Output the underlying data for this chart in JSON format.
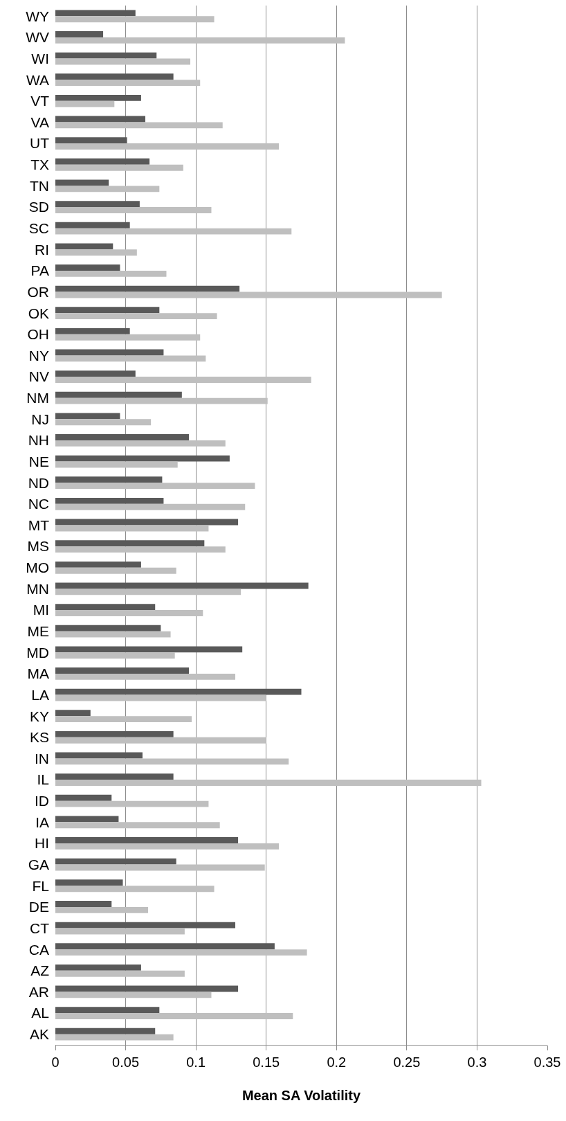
{
  "chart_data": {
    "type": "bar",
    "orientation": "horizontal",
    "xlabel": "Mean SA Volatility",
    "categories": [
      "WY",
      "WV",
      "WI",
      "WA",
      "VT",
      "VA",
      "UT",
      "TX",
      "TN",
      "SD",
      "SC",
      "RI",
      "PA",
      "OR",
      "OK",
      "OH",
      "NY",
      "NV",
      "NM",
      "NJ",
      "NH",
      "NE",
      "ND",
      "NC",
      "MT",
      "MS",
      "MO",
      "MN",
      "MI",
      "ME",
      "MD",
      "MA",
      "LA",
      "KY",
      "KS",
      "IN",
      "IL",
      "ID",
      "IA",
      "HI",
      "GA",
      "FL",
      "DE",
      "CT",
      "CA",
      "AZ",
      "AR",
      "AL",
      "AK"
    ],
    "series": [
      {
        "color": "#595959",
        "values": [
          0.057,
          0.034,
          0.072,
          0.084,
          0.061,
          0.064,
          0.051,
          0.067,
          0.038,
          0.06,
          0.053,
          0.041,
          0.046,
          0.131,
          0.074,
          0.053,
          0.077,
          0.057,
          0.09,
          0.046,
          0.095,
          0.124,
          0.076,
          0.077,
          0.13,
          0.106,
          0.061,
          0.18,
          0.071,
          0.075,
          0.133,
          0.095,
          0.175,
          0.025,
          0.084,
          0.062,
          0.084,
          0.04,
          0.045,
          0.13,
          0.086,
          0.048,
          0.04,
          0.128,
          0.156,
          0.061,
          0.13,
          0.074,
          0.071
        ]
      },
      {
        "color": "#bfbfbf",
        "values": [
          0.113,
          0.206,
          0.096,
          0.103,
          0.042,
          0.119,
          0.159,
          0.091,
          0.074,
          0.111,
          0.168,
          0.058,
          0.079,
          0.275,
          0.115,
          0.103,
          0.107,
          0.182,
          0.151,
          0.068,
          0.121,
          0.087,
          0.142,
          0.135,
          0.109,
          0.121,
          0.086,
          0.132,
          0.105,
          0.082,
          0.085,
          0.128,
          0.15,
          0.097,
          0.15,
          0.166,
          0.303,
          0.109,
          0.117,
          0.159,
          0.149,
          0.113,
          0.066,
          0.092,
          0.179,
          0.092,
          0.111,
          0.169,
          0.084
        ]
      }
    ],
    "xlim": [
      0,
      0.35
    ],
    "xticks": [
      0,
      0.05,
      0.1,
      0.15,
      0.2,
      0.25,
      0.3,
      0.35
    ],
    "grid": "x"
  }
}
